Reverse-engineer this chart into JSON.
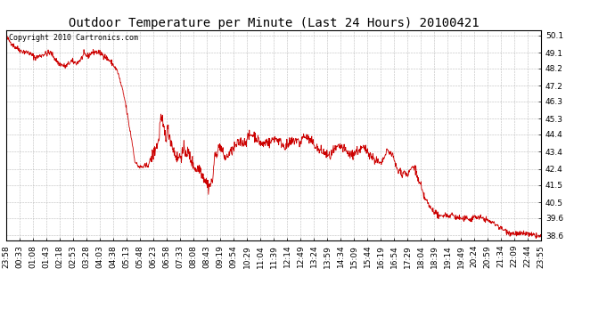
{
  "title": "Outdoor Temperature per Minute (Last 24 Hours) 20100421",
  "copyright_text": "Copyright 2010 Cartronics.com",
  "line_color": "#cc0000",
  "background_color": "#ffffff",
  "grid_color": "#bbbbbb",
  "yticks": [
    38.6,
    39.6,
    40.5,
    41.5,
    42.4,
    43.4,
    44.4,
    45.3,
    46.3,
    47.2,
    48.2,
    49.1,
    50.1
  ],
  "ylim": [
    38.3,
    50.4
  ],
  "xtick_labels": [
    "23:58",
    "00:33",
    "01:08",
    "01:43",
    "02:18",
    "02:53",
    "03:28",
    "04:03",
    "04:38",
    "05:13",
    "05:48",
    "06:23",
    "06:58",
    "07:33",
    "08:08",
    "08:43",
    "09:19",
    "09:54",
    "10:29",
    "11:04",
    "11:39",
    "12:14",
    "12:49",
    "13:24",
    "13:59",
    "14:34",
    "15:09",
    "15:44",
    "16:19",
    "16:54",
    "17:29",
    "18:04",
    "18:39",
    "19:14",
    "19:49",
    "20:24",
    "20:59",
    "21:34",
    "22:09",
    "22:44",
    "23:55"
  ],
  "title_fontsize": 10,
  "copyright_fontsize": 6,
  "tick_fontsize": 6.5
}
